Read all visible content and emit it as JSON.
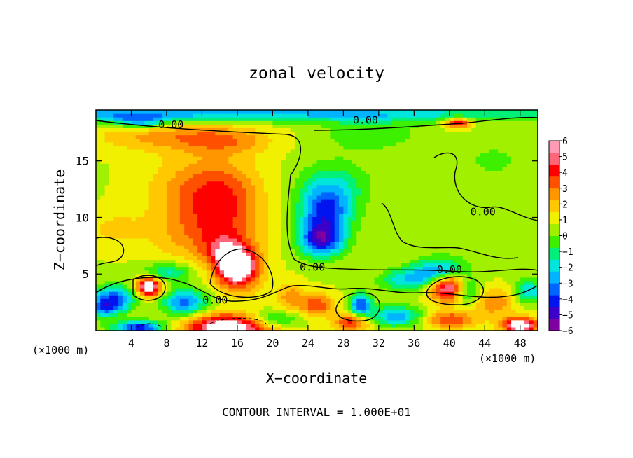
{
  "chart_data": {
    "type": "heatmap",
    "title": "zonal velocity",
    "xlabel": "X−coordinate",
    "ylabel": "Z−coordinate",
    "x_unit_left": "(×1000 m)",
    "x_unit_right": "(×1000 m)",
    "footer": "CONTOUR INTERVAL = 1.000E+01",
    "xlim": [
      0,
      50
    ],
    "ylim": [
      0,
      19.5
    ],
    "x_ticks": [
      4,
      8,
      12,
      16,
      20,
      24,
      28,
      32,
      36,
      40,
      44,
      48
    ],
    "x_tick_labels": [
      "4",
      "8",
      "12",
      "16",
      "20",
      "24",
      "28",
      "32",
      "36",
      "40",
      "44",
      "48"
    ],
    "y_ticks": [
      5,
      10,
      15
    ],
    "y_tick_labels": [
      "5",
      "10",
      "15"
    ],
    "colorbar_ticks": [
      6,
      5,
      4,
      3,
      2,
      1,
      0,
      -1,
      -2,
      -3,
      -4,
      -5,
      -6
    ],
    "colorbar_tick_labels": [
      "6",
      "5",
      "4",
      "3",
      "2",
      "1",
      "0",
      "−1",
      "−2",
      "−3",
      "−4",
      "−5",
      "−6"
    ],
    "colorbar_range": [
      -6,
      6
    ],
    "contour_labels": [
      {
        "text": "0.00",
        "x": 8.5,
        "z": 18.2
      },
      {
        "text": "0.00",
        "x": 30.5,
        "z": 18.6
      },
      {
        "text": "0.00",
        "x": 43.8,
        "z": 10.5
      },
      {
        "text": "0.00",
        "x": 24.5,
        "z": 5.6
      },
      {
        "text": "0.00",
        "x": 40.0,
        "z": 5.4
      },
      {
        "text": "0.00",
        "x": 13.5,
        "z": 2.7
      }
    ],
    "features": [
      {
        "x": 0,
        "z": 19.2,
        "sx": 60,
        "sz": 0.7,
        "v": -3.5
      },
      {
        "x": 5,
        "z": 18.5,
        "sx": 3,
        "sz": 0.6,
        "v": -3
      },
      {
        "x": 8,
        "z": 17.2,
        "sx": 8,
        "sz": 1.3,
        "v": 1.8
      },
      {
        "x": 15,
        "z": 16.8,
        "sx": 5,
        "sz": 1.2,
        "v": 1.5
      },
      {
        "x": 11,
        "z": 12.5,
        "sx": 5,
        "sz": 3.0,
        "v": 2.0
      },
      {
        "x": 15,
        "z": 11.5,
        "sx": 4,
        "sz": 3.5,
        "v": 2.2
      },
      {
        "x": 12,
        "z": 8.5,
        "sx": 6,
        "sz": 2.5,
        "v": 1.8
      },
      {
        "x": 16,
        "z": 5.5,
        "sx": 2.4,
        "sz": 1.8,
        "v": 6.0
      },
      {
        "x": 14.5,
        "z": 7.0,
        "sx": 2.5,
        "sz": 1.5,
        "v": 2.0
      },
      {
        "x": 6,
        "z": 3.9,
        "sx": 1.4,
        "sz": 0.9,
        "v": 6.0
      },
      {
        "x": 2,
        "z": 3.0,
        "sx": 2.5,
        "sz": 1.0,
        "v": -4.0
      },
      {
        "x": 1,
        "z": 2.0,
        "sx": 2,
        "sz": 0.8,
        "v": -3.5
      },
      {
        "x": 8,
        "z": 5.2,
        "sx": 3,
        "sz": 0.8,
        "v": -2.5
      },
      {
        "x": 10,
        "z": 2.5,
        "sx": 2.5,
        "sz": 1.2,
        "v": -4.0
      },
      {
        "x": 5,
        "z": 0.3,
        "sx": 3,
        "sz": 0.6,
        "v": -5.0
      },
      {
        "x": 15,
        "z": 0.3,
        "sx": 5,
        "sz": 1.2,
        "v": 6.0
      },
      {
        "x": 20,
        "z": 1.0,
        "sx": 3,
        "sz": 0.8,
        "v": -2.5
      },
      {
        "x": 26,
        "z": 10.5,
        "sx": 3,
        "sz": 2.2,
        "v": -4.5
      },
      {
        "x": 25.5,
        "z": 8.0,
        "sx": 2.5,
        "sz": 1.5,
        "v": -4.8
      },
      {
        "x": 27,
        "z": 13,
        "sx": 4,
        "sz": 2.0,
        "v": -1.8
      },
      {
        "x": 31,
        "z": 17.5,
        "sx": 6,
        "sz": 1.8,
        "v": -1.2
      },
      {
        "x": 25,
        "z": 2.3,
        "sx": 1.8,
        "sz": 1.0,
        "v": 3.0
      },
      {
        "x": 22,
        "z": 3.0,
        "sx": 1.6,
        "sz": 1.2,
        "v": 2.0
      },
      {
        "x": 30,
        "z": 2.3,
        "sx": 1.2,
        "sz": 1.0,
        "v": -4.5
      },
      {
        "x": 29,
        "z": 0.8,
        "sx": 2.0,
        "sz": 0.8,
        "v": 3.5
      },
      {
        "x": 34,
        "z": 1.3,
        "sx": 3,
        "sz": 0.9,
        "v": -3.5
      },
      {
        "x": 35,
        "z": 4.5,
        "sx": 3,
        "sz": 1.0,
        "v": -2.5
      },
      {
        "x": 40,
        "z": 4.0,
        "sx": 2.3,
        "sz": 1.3,
        "v": 6.0
      },
      {
        "x": 39,
        "z": 5.2,
        "sx": 3,
        "sz": 1.2,
        "v": -4.5
      },
      {
        "x": 42,
        "z": 3.5,
        "sx": 1.5,
        "sz": 1.2,
        "v": -3.5
      },
      {
        "x": 45,
        "z": 2.5,
        "sx": 2.5,
        "sz": 1.2,
        "v": 2.2
      },
      {
        "x": 40,
        "z": 1.0,
        "sx": 3,
        "sz": 0.8,
        "v": 3.0
      },
      {
        "x": 48,
        "z": 0.5,
        "sx": 2,
        "sz": 0.7,
        "v": 6.0
      },
      {
        "x": 49,
        "z": 3.5,
        "sx": 1.5,
        "sz": 1.0,
        "v": -3.0
      },
      {
        "x": 41,
        "z": 18.4,
        "sx": 1.5,
        "sz": 0.5,
        "v": 4.0
      },
      {
        "x": 45,
        "z": 15,
        "sx": 5,
        "sz": 2.5,
        "v": -0.8
      },
      {
        "x": 2,
        "z": 9,
        "sx": 3,
        "sz": 1.5,
        "v": 1.0
      }
    ]
  },
  "colors": {
    "palette": [
      "#7f00a0",
      "#3c00c8",
      "#0014f0",
      "#0064ff",
      "#00b4ff",
      "#00e6dc",
      "#00f078",
      "#3cf000",
      "#a0f000",
      "#f0f000",
      "#ffc800",
      "#ff9600",
      "#ff5000",
      "#ff0000",
      "#ff6478",
      "#ff9ab4"
    ],
    "frame": "#000000"
  }
}
